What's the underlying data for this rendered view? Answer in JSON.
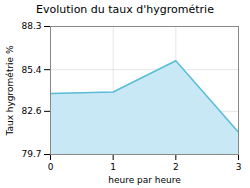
{
  "chart_data": {
    "type": "area",
    "title": "Evolution du taux d'hygrométrie",
    "xlabel": "heure par heure",
    "ylabel": "Taux hygrométrie %",
    "x": [
      0,
      1,
      2,
      3
    ],
    "values": [
      83.8,
      83.9,
      86.0,
      81.2
    ],
    "xlim": [
      0,
      3
    ],
    "ylim": [
      79.7,
      88.3
    ],
    "xticks": [
      0,
      1,
      2,
      3
    ],
    "yticks": [
      79.7,
      82.6,
      85.4,
      88.3
    ],
    "colors": [
      "#c8e8f5",
      "#5bbcd6"
    ],
    "grid": true
  }
}
